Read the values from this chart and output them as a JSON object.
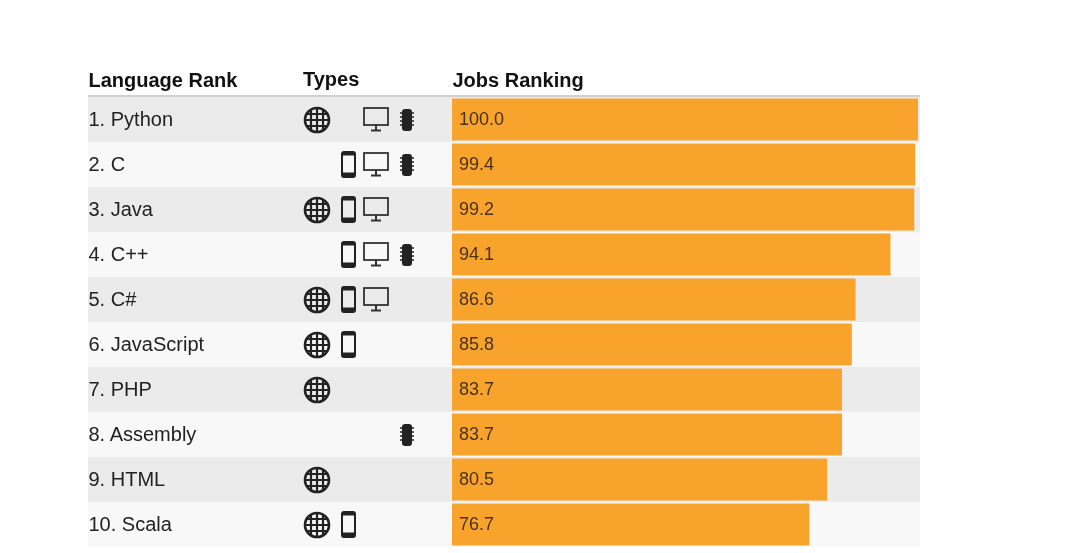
{
  "chart_data": {
    "type": "bar",
    "orientation": "horizontal",
    "ylabel": "Language Rank",
    "xlabel": "Jobs Ranking",
    "annotations": [
      "Types"
    ],
    "categories": [
      "1. Python",
      "2. C",
      "3. Java",
      "4. C++",
      "5. C#",
      "6. JavaScript",
      "7. PHP",
      "8. Assembly",
      "9. HTML",
      "10. Scala"
    ],
    "values": [
      100.0,
      99.4,
      99.2,
      94.1,
      86.6,
      85.8,
      83.7,
      83.7,
      80.5,
      76.7
    ],
    "value_labels": [
      "100.0",
      "99.4",
      "99.2",
      "94.1",
      "86.6",
      "85.8",
      "83.7",
      "83.7",
      "80.5",
      "76.7"
    ],
    "color": "#f8a42c",
    "xlim": [
      0,
      100
    ],
    "tick_labels": "y"
  }
}
